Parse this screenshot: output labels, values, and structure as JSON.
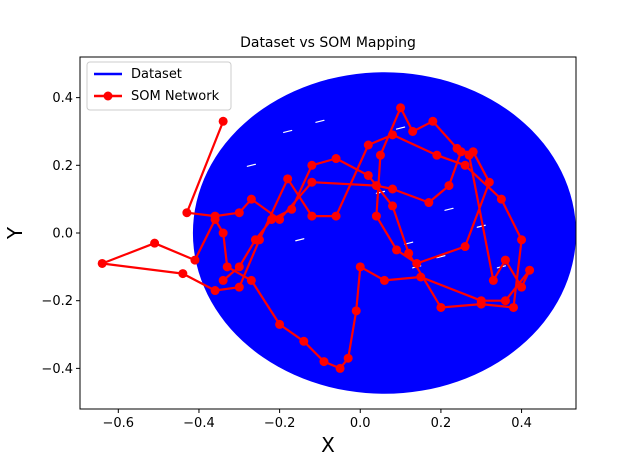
{
  "chart_data": {
    "type": "line",
    "title": "Dataset vs SOM Mapping",
    "xlabel": "X",
    "ylabel": "Y",
    "xlim": [
      -0.695,
      0.535
    ],
    "ylim": [
      -0.52,
      0.52
    ],
    "xticks": [
      -0.6,
      -0.4,
      -0.2,
      0.0,
      0.2,
      0.4
    ],
    "xtick_labels": [
      "−0.6",
      "−0.4",
      "−0.2",
      "0.0",
      "0.2",
      "0.4"
    ],
    "yticks": [
      -0.4,
      -0.2,
      0.0,
      0.2,
      0.4
    ],
    "ytick_labels": [
      "−0.4",
      "−0.2",
      "0.0",
      "0.2",
      "0.4"
    ],
    "grid": false,
    "legend_position": "upper-left",
    "series": [
      {
        "name": "Dataset",
        "color": "#0000ff",
        "kind": "dense-disc",
        "center": [
          0.06,
          0.0
        ],
        "radius_x": 0.475,
        "radius_y": 0.475
      },
      {
        "name": "SOM Network",
        "color": "#ff0000",
        "marker": "circle",
        "x": [
          -0.34,
          -0.43,
          -0.36,
          -0.3,
          -0.27,
          -0.2,
          -0.12,
          0.04,
          0.08,
          0.17,
          0.22,
          0.25,
          0.28,
          0.32,
          0.26,
          0.14,
          0.09,
          0.04,
          0.05,
          0.1,
          0.13,
          0.18,
          0.24,
          0.27,
          0.33,
          0.36,
          0.4,
          0.42,
          0.36,
          0.3,
          0.15,
          0.06,
          0.0,
          -0.01,
          -0.03,
          -0.05,
          -0.09,
          -0.14,
          -0.2,
          -0.27,
          -0.33,
          -0.34,
          -0.36,
          -0.41,
          -0.51,
          -0.64,
          -0.44,
          -0.36,
          -0.3,
          -0.25,
          -0.18,
          -0.12,
          -0.06,
          0.02,
          0.08,
          0.19,
          0.26,
          0.35,
          0.4,
          0.38,
          0.3,
          0.2,
          0.12,
          0.08,
          0.02,
          -0.06,
          -0.12,
          -0.17,
          -0.22,
          -0.26,
          -0.3,
          -0.34
        ],
        "y": [
          0.33,
          0.06,
          0.05,
          0.06,
          0.1,
          0.04,
          0.15,
          0.14,
          0.13,
          0.09,
          0.14,
          0.24,
          0.24,
          0.15,
          -0.04,
          -0.09,
          -0.05,
          0.05,
          0.23,
          0.37,
          0.3,
          0.33,
          0.25,
          0.23,
          -0.14,
          -0.08,
          -0.16,
          -0.11,
          -0.2,
          -0.2,
          -0.13,
          -0.14,
          -0.1,
          -0.23,
          -0.37,
          -0.4,
          -0.38,
          -0.32,
          -0.27,
          -0.14,
          -0.1,
          0.0,
          0.04,
          -0.08,
          -0.03,
          -0.09,
          -0.12,
          -0.17,
          -0.16,
          -0.02,
          0.16,
          0.05,
          0.05,
          0.26,
          0.29,
          0.23,
          0.2,
          0.1,
          -0.02,
          -0.22,
          -0.21,
          -0.22,
          -0.06,
          0.08,
          0.17,
          0.22,
          0.2,
          0.07,
          0.04,
          -0.02,
          -0.1,
          -0.14
        ]
      }
    ]
  }
}
